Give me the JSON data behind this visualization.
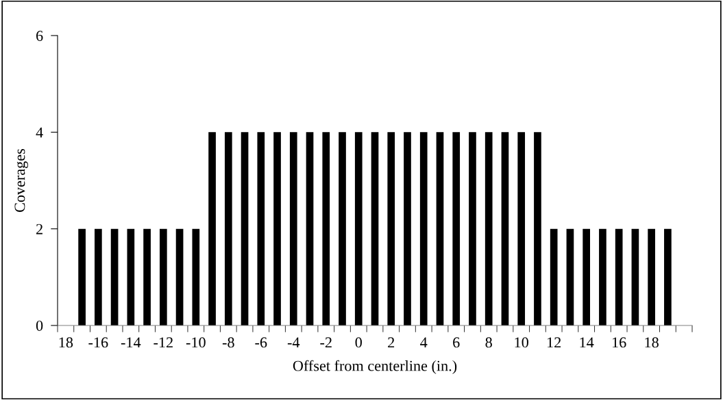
{
  "chart_data": {
    "type": "bar",
    "xlabel": "Offset from centerline (in.)",
    "ylabel": "Coverages",
    "categories": [
      "18",
      null,
      "-16",
      null,
      "-14",
      null,
      "-12",
      null,
      "-10",
      null,
      "-8",
      null,
      "-6",
      null,
      "-4",
      null,
      "-2",
      null,
      "0",
      null,
      "2",
      null,
      "4",
      null,
      "6",
      null,
      "8",
      null,
      "10",
      null,
      "12",
      null,
      "14",
      null,
      "16",
      null,
      "18",
      null,
      null
    ],
    "values": [
      null,
      2,
      2,
      2,
      2,
      2,
      2,
      2,
      2,
      4,
      4,
      4,
      4,
      4,
      4,
      4,
      4,
      4,
      4,
      4,
      4,
      4,
      4,
      4,
      4,
      4,
      4,
      4,
      4,
      4,
      2,
      2,
      2,
      2,
      2,
      2,
      2,
      2,
      null
    ],
    "color": "#000000",
    "ylim": [
      0,
      6
    ],
    "yticks": [
      0,
      2,
      4,
      6
    ],
    "grid": false
  }
}
